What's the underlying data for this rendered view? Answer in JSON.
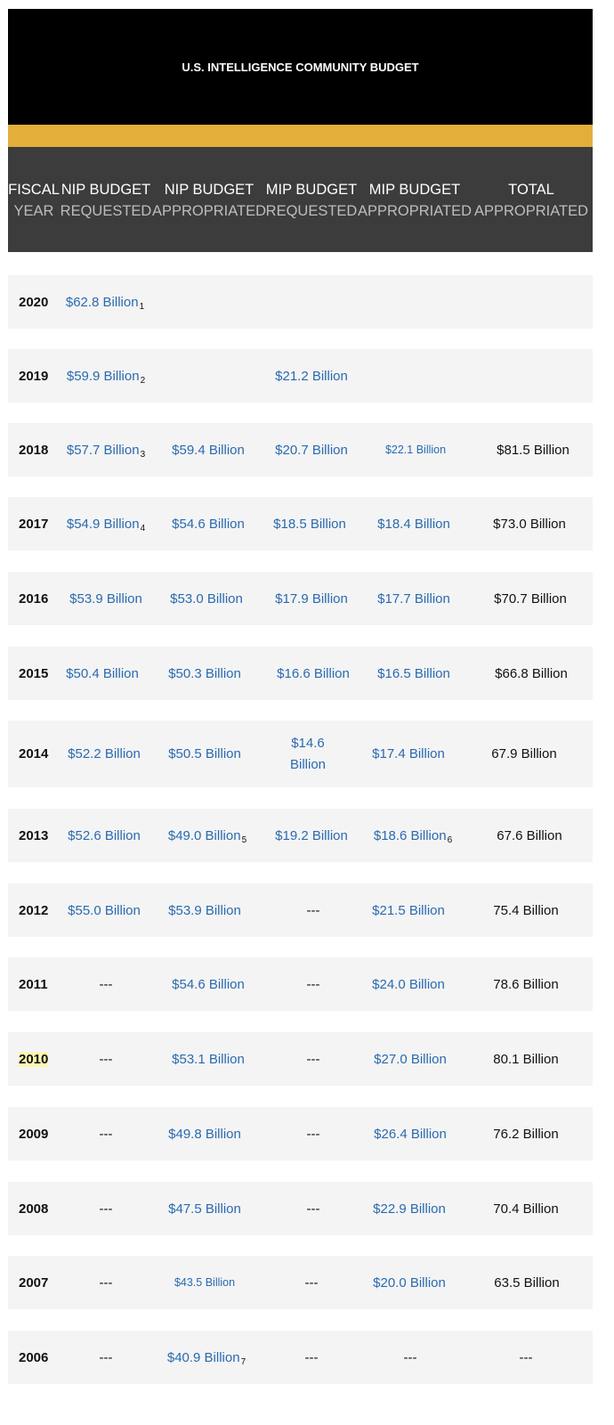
{
  "title": "U.S. INTELLIGENCE COMMUNITY BUDGET",
  "colors": {
    "banner": "#000000",
    "stripe": "#e3ae3a",
    "header": "#3c3c3c",
    "link": "#2a6ab0",
    "row": "#f4f4f4",
    "highlight": "#fdf7b0"
  },
  "headers": [
    {
      "l1": "FISCAL",
      "l2": "YEAR"
    },
    {
      "l1": "NIP BUDGET",
      "l2": "REQUESTED"
    },
    {
      "l1": "NIP BUDGET",
      "l2": "APPROPRIATED"
    },
    {
      "l1": "MIP BUDGET",
      "l2": "REQUESTED"
    },
    {
      "l1": "MIP BUDGET",
      "l2": "APPROPRIATED"
    },
    {
      "l1": "TOTAL",
      "l2": "APPROPRIATED"
    }
  ],
  "rows": [
    {
      "year": "2020",
      "nip_req": "$62.8 Billion",
      "nip_req_fn": "1",
      "nip_app": "",
      "mip_req": "",
      "mip_app": "",
      "total": ""
    },
    {
      "year": "2019",
      "nip_req": "$59.9 Billion",
      "nip_req_fn": "2",
      "nip_app": "",
      "mip_req": "$21.2 Billion",
      "mip_app": "",
      "total": ""
    },
    {
      "year": "2018",
      "nip_req": "$57.7 Billion",
      "nip_req_fn": "3",
      "nip_app": "$59.4 Billion",
      "mip_req": "$20.7 Billion",
      "mip_app": "$22.1 Billion",
      "total": "$81.5 Billion"
    },
    {
      "year": "2017",
      "nip_req": "$54.9 Billion",
      "nip_req_fn": "4",
      "nip_app": "$54.6 Billion",
      "mip_req": "$18.5 Billion",
      "mip_app": "$18.4 Billion",
      "total": "$73.0 Billion"
    },
    {
      "year": "2016",
      "nip_req": "$53.9 Billion",
      "nip_app": "$53.0 Billion",
      "mip_req": "$17.9 Billion",
      "mip_app": "$17.7 Billion",
      "total": "$70.7 Billion"
    },
    {
      "year": "2015",
      "nip_req": "$50.4 Billion",
      "nip_app": "$50.3 Billion",
      "mip_req": "$16.6 Billion",
      "mip_app": "$16.5 Billion",
      "total": "$66.8 Billion"
    },
    {
      "year": "2014",
      "nip_req": "$52.2 Billion",
      "nip_app": "$50.5 Billion",
      "mip_req": "$14.6 Billion",
      "mip_app": "$17.4 Billion",
      "total": "67.9 Billion"
    },
    {
      "year": "2013",
      "nip_req": "$52.6 Billion",
      "nip_app": "$49.0 Billion",
      "nip_app_fn": "5",
      "mip_req": "$19.2 Billion",
      "mip_app": "$18.6 Billion",
      "mip_app_fn": "6",
      "total": "67.6 Billion"
    },
    {
      "year": "2012",
      "nip_req": "$55.0 Billion",
      "nip_app": "$53.9 Billion",
      "mip_req": "---",
      "mip_app": "$21.5 Billion",
      "total": "75.4 Billion"
    },
    {
      "year": "2011",
      "nip_req": "---",
      "nip_app": "$54.6 Billion",
      "mip_req": "---",
      "mip_app": "$24.0 Billion",
      "total": "78.6 Billion"
    },
    {
      "year": "2010",
      "nip_req": "---",
      "nip_app": "$53.1 Billion",
      "mip_req": "---",
      "mip_app": "$27.0 Billion",
      "total": "80.1 Billion"
    },
    {
      "year": "2009",
      "nip_req": "---",
      "nip_app": "$49.8 Billion",
      "mip_req": "---",
      "mip_app": "$26.4 Billion",
      "total": "76.2 Billion"
    },
    {
      "year": "2008",
      "nip_req": "---",
      "nip_app": "$47.5 Billion",
      "mip_req": "---",
      "mip_app": "$22.9 Billion",
      "total": "70.4 Billion"
    },
    {
      "year": "2007",
      "nip_req": "---",
      "nip_app": "$43.5 Billion",
      "mip_req": "---",
      "mip_app": "$20.0 Billion",
      "total": "63.5 Billion"
    },
    {
      "year": "2006",
      "nip_req": "---",
      "nip_app": "$40.9 Billion",
      "nip_app_fn": "7",
      "mip_req": "---",
      "mip_app": "---",
      "total": "---"
    }
  ]
}
